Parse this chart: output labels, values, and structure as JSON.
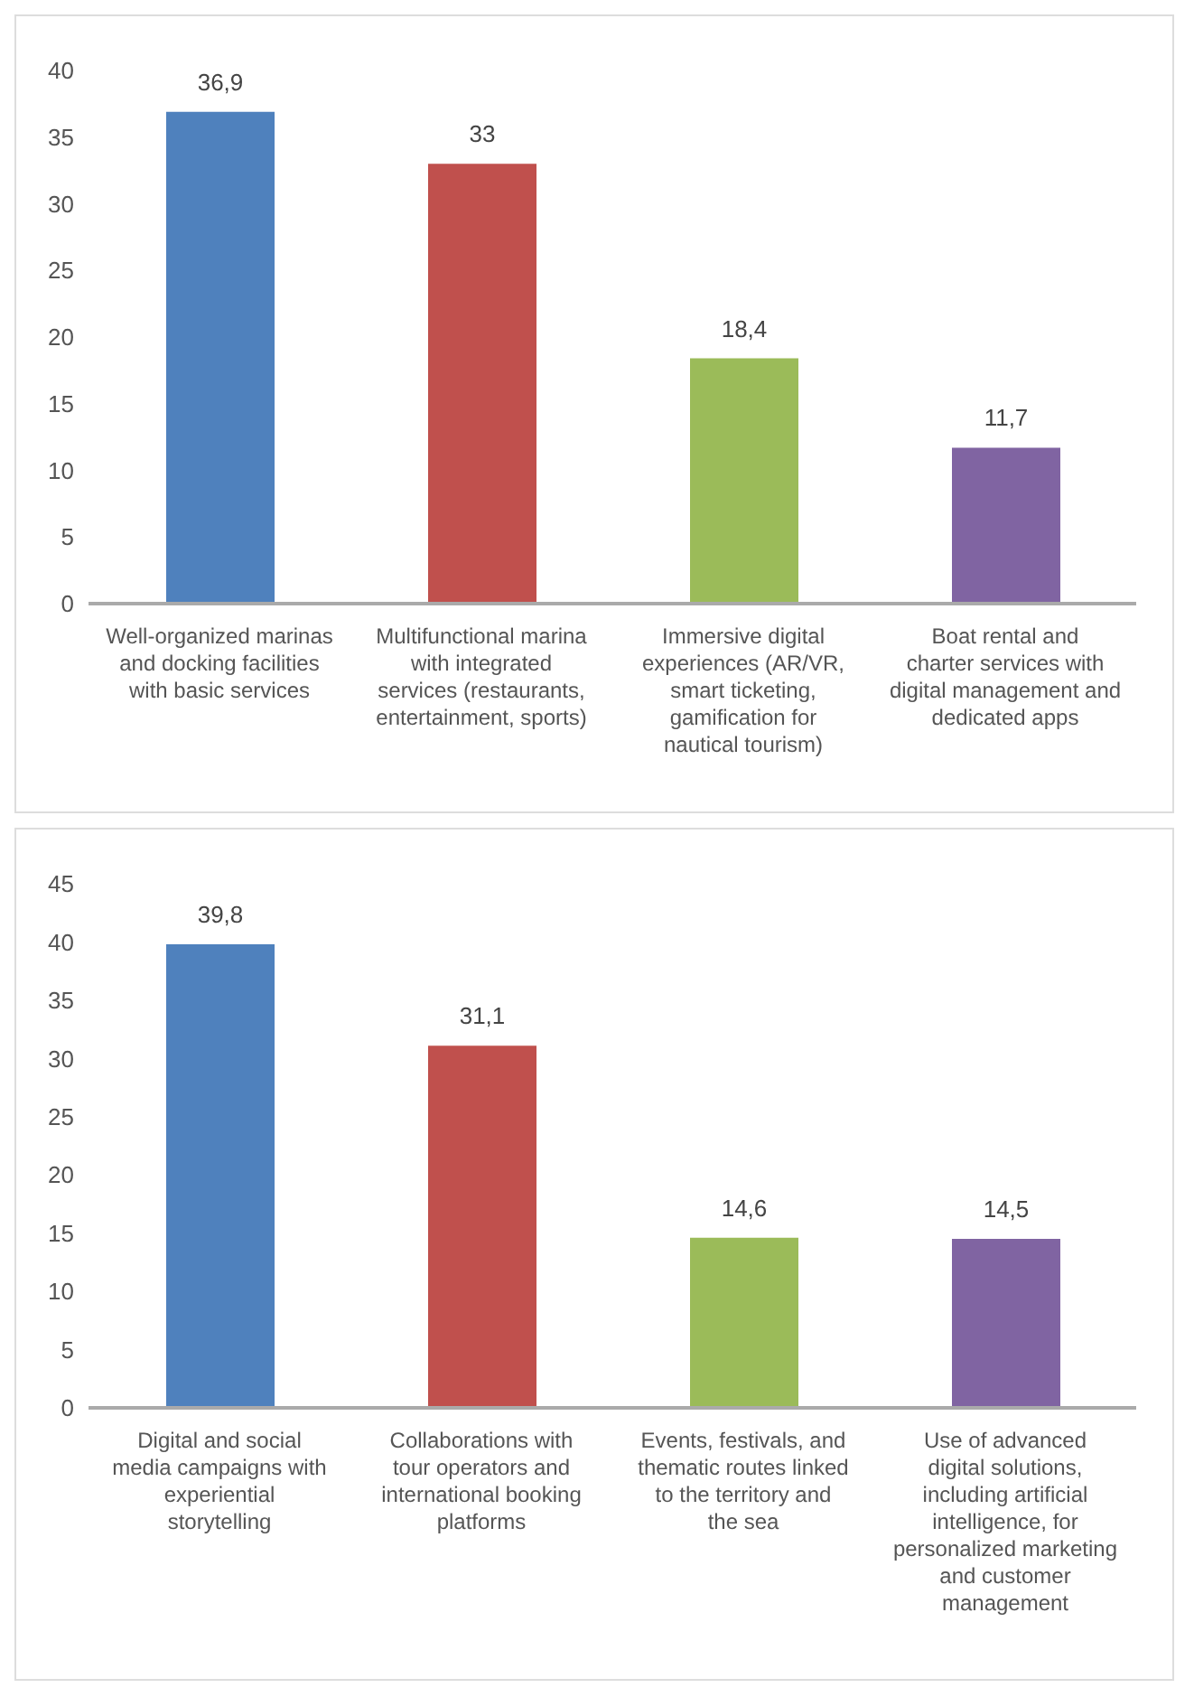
{
  "chart_data": [
    {
      "type": "bar",
      "categories": [
        "Well-organized marinas and docking facilities with basic services",
        "Multifunctional marina with integrated services (restaurants, entertainment, sports)",
        "Immersive digital experiences (AR/VR, smart ticketing, gamification for nautical tourism)",
        "Boat rental and charter services with digital management and dedicated apps"
      ],
      "values": [
        36.9,
        33,
        18.4,
        11.7
      ],
      "colors": [
        "#4f81bd",
        "#c0504d",
        "#9bbb59",
        "#8064a2"
      ],
      "value_labels": [
        "36,9",
        "33",
        "18,4",
        "11,7"
      ],
      "ylim": [
        0,
        40
      ],
      "yticks": [
        0,
        5,
        10,
        15,
        20,
        25,
        30,
        35,
        40
      ],
      "grid": false,
      "legend": false
    },
    {
      "type": "bar",
      "categories": [
        "Digital and social media campaigns with experiential storytelling",
        "Collaborations with tour operators and international booking platforms",
        "Events, festivals, and thematic routes linked to the territory and the sea",
        "Use of advanced digital solutions, including artificial intelligence, for personalized marketing and customer management"
      ],
      "values": [
        39.8,
        31.1,
        14.6,
        14.5
      ],
      "colors": [
        "#4f81bd",
        "#c0504d",
        "#9bbb59",
        "#8064a2"
      ],
      "value_labels": [
        "39,8",
        "31,1",
        "14,6",
        "14,5"
      ],
      "ylim": [
        0,
        45
      ],
      "yticks": [
        0,
        5,
        10,
        15,
        20,
        25,
        30,
        35,
        40,
        45
      ],
      "grid": false,
      "legend": false
    }
  ]
}
